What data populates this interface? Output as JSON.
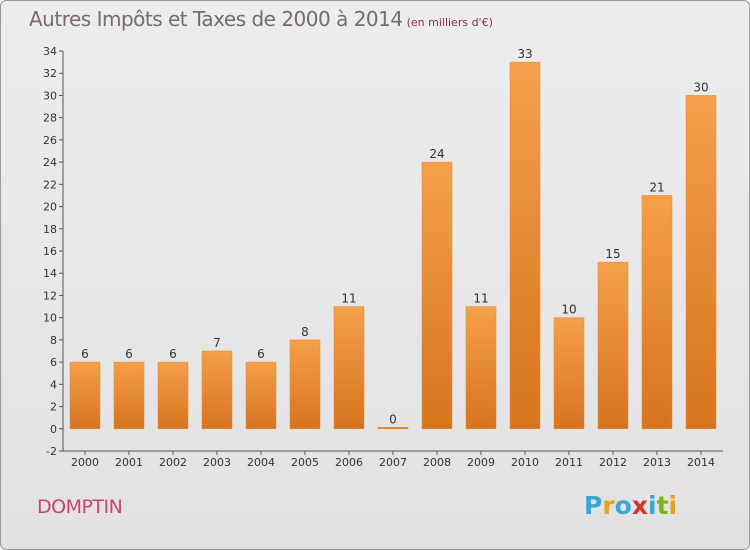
{
  "chart_data": {
    "type": "bar",
    "title": "Autres Impôts et Taxes de 2000 à 2014",
    "subtitle": "(en milliers d'€)",
    "categories": [
      "2000",
      "2001",
      "2002",
      "2003",
      "2004",
      "2005",
      "2006",
      "2007",
      "2008",
      "2009",
      "2010",
      "2011",
      "2012",
      "2013",
      "2014"
    ],
    "values": [
      6,
      6,
      6,
      7,
      6,
      8,
      11,
      0,
      24,
      11,
      33,
      10,
      15,
      21,
      30
    ],
    "ylim": [
      -2,
      34
    ],
    "yticks": [
      -2,
      0,
      2,
      4,
      6,
      8,
      10,
      12,
      14,
      16,
      18,
      20,
      22,
      24,
      26,
      28,
      30,
      32,
      34
    ],
    "grid": false,
    "bar_color": "#f5a04a",
    "bar_color_dark": "#d6741e"
  },
  "footer": {
    "city": "DOMPTIN",
    "brand_letters": [
      "P",
      "r",
      "o",
      "x",
      "i",
      "t",
      "i"
    ],
    "brand_colors": [
      "#3aa6d8",
      "#e8a21a",
      "#3aa6d8",
      "#d8322a",
      "#3aa6d8",
      "#7ab51d",
      "#e8a21a"
    ]
  }
}
